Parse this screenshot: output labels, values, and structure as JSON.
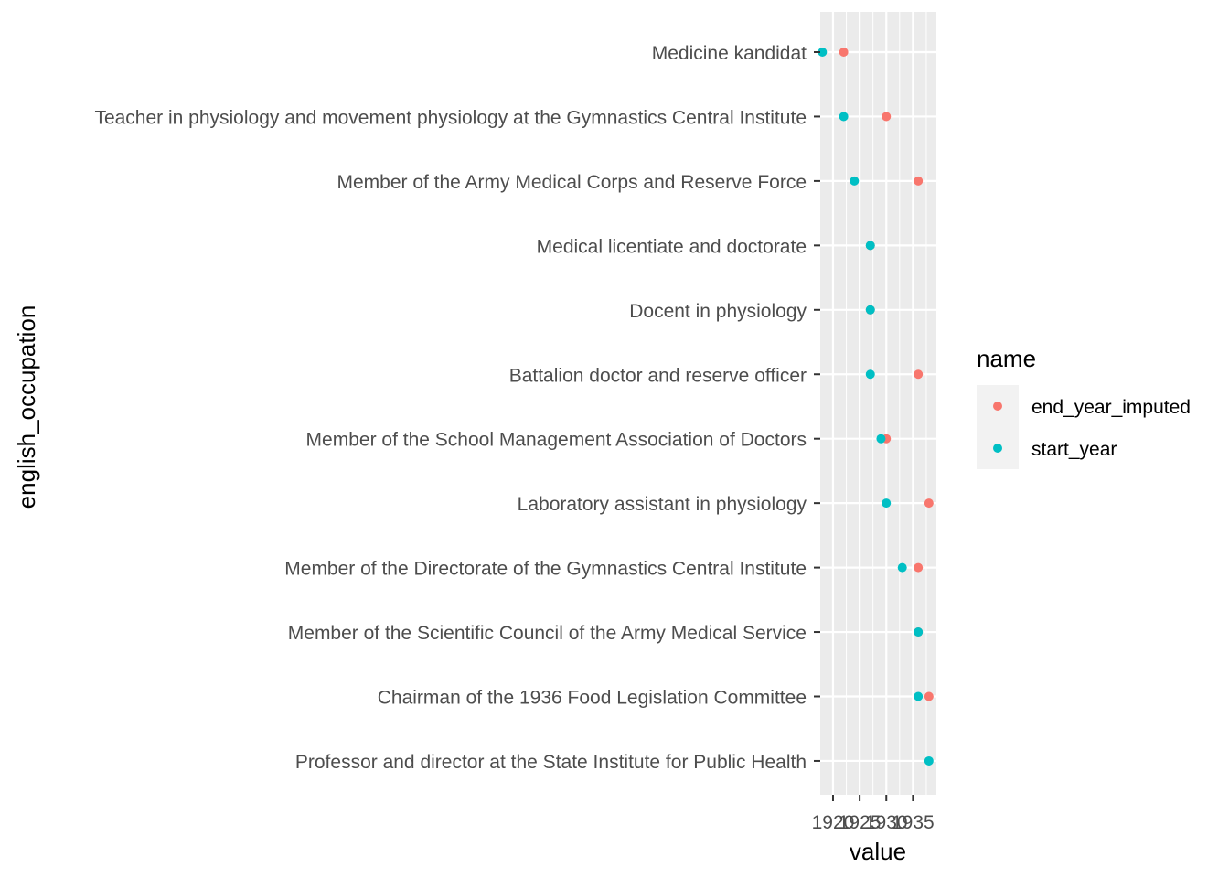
{
  "chart_data": {
    "type": "scatter",
    "xlabel": "value",
    "ylabel": "english_occupation",
    "x_ticks": [
      1920,
      1925,
      1930,
      1935
    ],
    "x_tick_labels": [
      "1920",
      "1925",
      "1930",
      "1935"
    ],
    "xlim": [
      1917.6,
      1939.4
    ],
    "grid": true,
    "legend": {
      "title": "name",
      "placement": "right"
    },
    "categories": [
      "Medicine kandidat",
      "Teacher in physiology and movement physiology at the Gymnastics Central Institute",
      "Member of the Army Medical Corps and Reserve Force",
      "Medical licentiate and doctorate",
      "Docent in physiology",
      "Battalion doctor and reserve officer",
      "Member of the School Management Association of Doctors",
      "Laboratory assistant in physiology",
      "Member of the Directorate of the Gymnastics Central Institute",
      "Member of the Scientific Council of the Army Medical Service",
      "Chairman of the 1936 Food Legislation Committee",
      "Professor and director at the State Institute for Public Health"
    ],
    "series": [
      {
        "name": "end_year_imputed",
        "color": "#F8766D",
        "values": [
          1922,
          1930,
          1936,
          1927,
          1927,
          1936,
          1930,
          1938,
          1936,
          1936,
          1938,
          null
        ]
      },
      {
        "name": "start_year",
        "color": "#00BFC4",
        "values": [
          1918,
          1922,
          1924,
          1927,
          1927,
          1927,
          1929,
          1930,
          1933,
          1936,
          1936,
          1938
        ]
      }
    ]
  }
}
